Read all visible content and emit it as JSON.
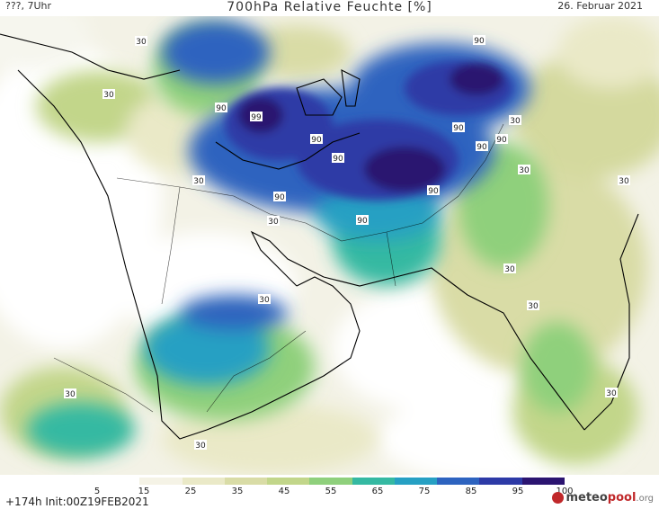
{
  "header": {
    "left": "???, 7Uhr",
    "title": "700hPa Relative Feuchte [%]",
    "date": "26. Februar 2021"
  },
  "map": {
    "contour_labels": [
      "30",
      "30",
      "30",
      "30",
      "30",
      "30",
      "30",
      "30",
      "30",
      "30",
      "30",
      "30",
      "30",
      "90",
      "90",
      "90",
      "90",
      "90",
      "90",
      "90",
      "90",
      "90",
      "90",
      "99"
    ],
    "colors": {
      "background_dry": "#ffffff",
      "moist_blue": "#2d63bf",
      "very_moist": "#2b1470",
      "coast": "#000000"
    }
  },
  "legend": {
    "ticks": [
      "5",
      "15",
      "25",
      "35",
      "45",
      "55",
      "65",
      "75",
      "85",
      "95",
      "100"
    ],
    "colors": [
      "#ffffff",
      "#f5f3e6",
      "#eae9c7",
      "#d9dca6",
      "#c2d68a",
      "#8fd07c",
      "#35b9a2",
      "#26a0c3",
      "#2d63bf",
      "#2d3aa6",
      "#2b1470"
    ]
  },
  "footer": {
    "init": "+174h Init:00Z19FEB2021",
    "logo_main": "meteo",
    "logo_accent": "pool",
    "logo_suffix": ".org"
  }
}
